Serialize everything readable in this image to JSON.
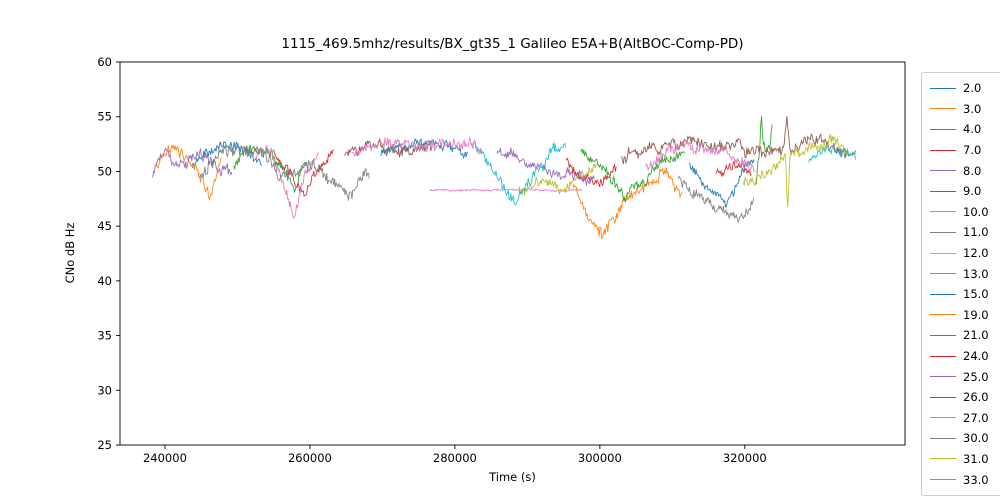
{
  "chart_data": {
    "type": "line",
    "title": "1115_469.5mhz/results/BX_gt35_1 Galileo E5A+B(AltBOC-Comp-PD)",
    "xlabel": "Time (s)",
    "ylabel": "CNo dB Hz",
    "xlim": [
      233800,
      342100
    ],
    "ylim": [
      25,
      60
    ],
    "xticks": [
      240000,
      260000,
      280000,
      300000,
      320000
    ],
    "yticks": [
      25,
      30,
      35,
      40,
      45,
      50,
      55,
      60
    ],
    "grid": false,
    "legend_position": "right-outside",
    "series": [
      {
        "name": "2.0",
        "color": "#1f77b4",
        "noise": 0.45,
        "segments": [
          {
            "x": [
              243800,
              245500,
              247500,
              249500,
              251500,
              253500
            ],
            "y": [
              50.3,
              52.0,
              52.4,
              52.2,
              51.8,
              50.8
            ]
          }
        ]
      },
      {
        "name": "3.0",
        "color": "#ff7f0e",
        "noise": 0.45,
        "segments": [
          {
            "x": [
              238800,
              240500,
              242500,
              244500,
              246300,
              247800
            ],
            "y": [
              50.8,
              51.8,
              51.5,
              50.5,
              47.8,
              50.8
            ]
          }
        ]
      },
      {
        "name": "4.0",
        "color": "#2ca02c",
        "noise": 0.45,
        "segments": [
          {
            "x": [
              249500,
              251500,
              254000,
              256500,
              258000,
              259500
            ],
            "y": [
              50.3,
              52.3,
              52.0,
              50.0,
              48.4,
              51.3
            ]
          }
        ]
      },
      {
        "name": "7.0",
        "color": "#d62728",
        "noise": 0.45,
        "segments": [
          {
            "x": [
              255000,
              257000,
              259300,
              261300,
              263300
            ],
            "y": [
              51.6,
              49.8,
              47.6,
              50.3,
              51.6
            ]
          }
        ]
      },
      {
        "name": "8.0",
        "color": "#9467bd",
        "noise": 0.55,
        "segments": [
          {
            "x": [
              238300,
              240300,
              242800,
              245300,
              247800,
              249300
            ],
            "y": [
              49.8,
              51.6,
              50.4,
              51.8,
              50.6,
              49.8
            ]
          }
        ]
      },
      {
        "name": "9.0",
        "color": "#8c564b",
        "noise": 0.5,
        "segments": [
          {
            "x": [
              303000,
              307000,
              312000,
              317000,
              321500,
              325400,
              325800,
              326200,
              329000,
              332500,
              335300
            ],
            "y": [
              51.3,
              52.2,
              52.5,
              52.2,
              51.8,
              52.2,
              55.2,
              52.2,
              52.8,
              52.6,
              51.3
            ]
          }
        ]
      },
      {
        "name": "10.0",
        "color": "#e377c2",
        "noise": 0.4,
        "segments": [
          {
            "x": [
              252500,
              254500,
              256300,
              257800,
              259300,
              261300
            ],
            "y": [
              51.6,
              51.9,
              49.0,
              45.8,
              49.8,
              51.8
            ]
          },
          {
            "x": [
              276500,
              281000,
              286000,
              291000,
              294500,
              297500
            ],
            "y": [
              48.3,
              48.3,
              48.3,
              48.3,
              48.3,
              48.3
            ],
            "noise": 0.07
          }
        ]
      },
      {
        "name": "11.0",
        "color": "#7f7f7f",
        "noise": 0.55,
        "segments": [
          {
            "x": [
              244800,
              247300,
              250300,
              253300,
              256300,
              259300,
              262300,
              265300,
              268300
            ],
            "y": [
              49.8,
              51.8,
              52.3,
              51.3,
              49.8,
              50.6,
              49.2,
              48.2,
              49.6
            ]
          }
        ]
      },
      {
        "name": "12.0",
        "color": "#bcbd22",
        "noise": 0.45,
        "segments": [
          {
            "x": [
              288800,
              291300,
              294300,
              297300,
              299800
            ],
            "y": [
              48.0,
              49.6,
              48.4,
              49.8,
              50.4
            ]
          }
        ]
      },
      {
        "name": "13.0",
        "color": "#17becf",
        "noise": 0.45,
        "segments": [
          {
            "x": [
              282800,
              285300,
              288300,
              290800,
              293300,
              295300
            ],
            "y": [
              52.4,
              50.0,
              47.2,
              49.6,
              52.0,
              52.4
            ]
          }
        ]
      },
      {
        "name": "15.0",
        "color": "#1f77b4",
        "noise": 0.45,
        "segments": [
          {
            "x": [
              269800,
              272800,
              275800,
              278800,
              281800
            ],
            "y": [
              51.4,
              52.3,
              52.5,
              52.2,
              51.4
            ]
          },
          {
            "x": [
              312300,
              314800,
              317300,
              319300,
              321300
            ],
            "y": [
              50.4,
              48.4,
              47.0,
              49.4,
              51.4
            ]
          }
        ]
      },
      {
        "name": "19.0",
        "color": "#ff7f0e",
        "noise": 0.5,
        "segments": [
          {
            "x": [
              296300,
              298300,
              300300,
              303300,
              306300,
              309300,
              311300
            ],
            "y": [
              49.4,
              45.8,
              44.4,
              47.0,
              49.0,
              50.0,
              47.6
            ]
          }
        ]
      },
      {
        "name": "21.0",
        "color": "#2ca02c",
        "noise": 0.45,
        "segments": [
          {
            "x": [
              297300,
              300300,
              303300,
              306300,
              309300,
              311800
            ],
            "y": [
              52.0,
              50.4,
              47.9,
              49.2,
              51.4,
              52.0
            ]
          },
          {
            "x": [
              321600,
              322300,
              323000,
              323800
            ],
            "y": [
              49.8,
              54.4,
              50.6,
              53.2
            ],
            "noise": 0.9
          }
        ]
      },
      {
        "name": "24.0",
        "color": "#d62728",
        "noise": 0.4,
        "segments": [
          {
            "x": [
              295300,
              297800,
              300300,
              302300
            ],
            "y": [
              51.0,
              49.3,
              48.7,
              50.4
            ]
          },
          {
            "x": [
              316000,
              318500,
              321000
            ],
            "y": [
              50.0,
              50.6,
              49.8
            ]
          }
        ]
      },
      {
        "name": "25.0",
        "color": "#9467bd",
        "noise": 0.45,
        "segments": [
          {
            "x": [
              285800,
              288800,
              291800,
              294800,
              297300,
              299300
            ],
            "y": [
              52.0,
              51.4,
              50.4,
              49.5,
              49.8,
              49.2
            ]
          }
        ]
      },
      {
        "name": "26.0",
        "color": "#8c564b",
        "noise": 0.45,
        "segments": [
          {
            "x": [
              264800,
              267800,
              270800,
              273800,
              276800
            ],
            "y": [
              51.4,
              52.3,
              52.0,
              51.6,
              52.2
            ]
          }
        ]
      },
      {
        "name": "27.0",
        "color": "#e377c2",
        "noise": 0.45,
        "segments": [
          {
            "x": [
              265800,
              269800,
              273800,
              277800,
              281800,
              283800
            ],
            "y": [
              51.6,
              52.5,
              52.3,
              52.5,
              52.2,
              51.5
            ]
          },
          {
            "x": [
              306300,
              309300,
              312300,
              315300,
              318300,
              321300
            ],
            "y": [
              50.4,
              52.0,
              52.5,
              52.2,
              51.4,
              50.4
            ]
          }
        ]
      },
      {
        "name": "30.0",
        "color": "#7f7f7f",
        "noise": 0.45,
        "segments": [
          {
            "x": [
              310800,
              313800,
              316800,
              319300,
              321300
            ],
            "y": [
              49.4,
              47.4,
              46.0,
              45.2,
              47.4
            ]
          }
        ]
      },
      {
        "name": "31.0",
        "color": "#bcbd22",
        "noise": 0.45,
        "segments": [
          {
            "x": [
              319800,
              322800,
              325600,
              325900,
              326200,
              329300,
              332300,
              334300
            ],
            "y": [
              48.6,
              50.0,
              51.4,
              46.0,
              51.6,
              52.3,
              52.4,
              51.4
            ]
          }
        ]
      },
      {
        "name": "33.0",
        "color": "#17becf",
        "noise": 0.4,
        "segments": [
          {
            "x": [
              328800,
              331300,
              333800,
              335300
            ],
            "y": [
              51.0,
              52.0,
              51.8,
              51.2
            ]
          }
        ]
      }
    ]
  },
  "legend": {
    "entries": [
      "2.0",
      "3.0",
      "4.0",
      "7.0",
      "8.0",
      "9.0",
      "10.0",
      "11.0",
      "12.0",
      "13.0",
      "15.0",
      "19.0",
      "21.0",
      "24.0",
      "25.0",
      "26.0",
      "27.0",
      "30.0",
      "31.0",
      "33.0"
    ]
  }
}
